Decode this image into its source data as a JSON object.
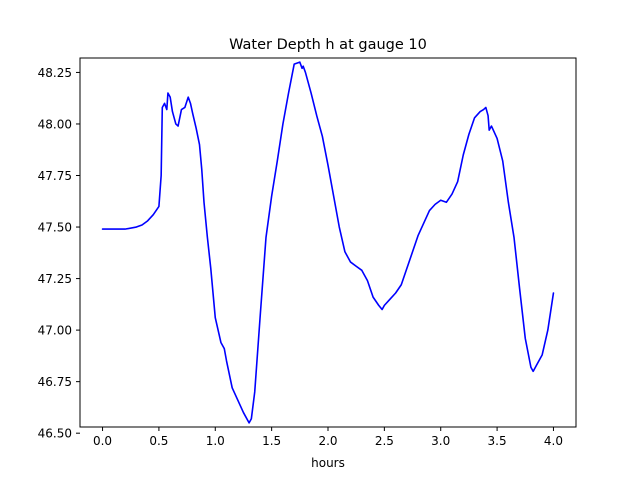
{
  "chart_data": {
    "type": "line",
    "title": "Water Depth h at gauge 10",
    "xlabel": "hours",
    "ylabel": "",
    "xlim": [
      -0.2,
      4.2
    ],
    "ylim": [
      46.53,
      48.32
    ],
    "xticks": [
      0.0,
      0.5,
      1.0,
      1.5,
      2.0,
      2.5,
      3.0,
      3.5,
      4.0
    ],
    "xtick_labels": [
      "0.0",
      "0.5",
      "1.0",
      "1.5",
      "2.0",
      "2.5",
      "3.0",
      "3.5",
      "4.0"
    ],
    "yticks": [
      46.5,
      46.75,
      47.0,
      47.25,
      47.5,
      47.75,
      48.0,
      48.25
    ],
    "ytick_labels": [
      "46.50",
      "46.75",
      "47.00",
      "47.25",
      "47.50",
      "47.75",
      "48.00",
      "48.25"
    ],
    "grid": false,
    "series": [
      {
        "color": "#0000ff",
        "x": [
          0.0,
          0.1,
          0.2,
          0.3,
          0.35,
          0.4,
          0.45,
          0.5,
          0.52,
          0.53,
          0.55,
          0.57,
          0.58,
          0.6,
          0.62,
          0.65,
          0.67,
          0.7,
          0.73,
          0.76,
          0.78,
          0.8,
          0.83,
          0.86,
          0.88,
          0.9,
          0.93,
          0.96,
          1.0,
          1.05,
          1.08,
          1.1,
          1.15,
          1.2,
          1.25,
          1.3,
          1.32,
          1.35,
          1.4,
          1.45,
          1.5,
          1.55,
          1.6,
          1.65,
          1.7,
          1.75,
          1.77,
          1.78,
          1.8,
          1.85,
          1.9,
          1.95,
          2.0,
          2.05,
          2.1,
          2.15,
          2.2,
          2.25,
          2.3,
          2.35,
          2.4,
          2.45,
          2.48,
          2.5,
          2.55,
          2.6,
          2.65,
          2.7,
          2.75,
          2.8,
          2.85,
          2.9,
          2.95,
          3.0,
          3.05,
          3.1,
          3.15,
          3.2,
          3.25,
          3.3,
          3.35,
          3.38,
          3.4,
          3.42,
          3.43,
          3.45,
          3.5,
          3.55,
          3.6,
          3.65,
          3.7,
          3.75,
          3.8,
          3.82,
          3.85,
          3.9,
          3.95,
          4.0
        ],
        "y": [
          47.49,
          47.49,
          47.49,
          47.5,
          47.51,
          47.53,
          47.56,
          47.6,
          47.75,
          48.08,
          48.1,
          48.07,
          48.15,
          48.13,
          48.06,
          48.0,
          47.99,
          48.07,
          48.08,
          48.13,
          48.1,
          48.05,
          47.98,
          47.9,
          47.78,
          47.62,
          47.45,
          47.3,
          47.06,
          46.94,
          46.91,
          46.85,
          46.72,
          46.66,
          46.6,
          46.55,
          46.57,
          46.7,
          47.08,
          47.45,
          47.65,
          47.82,
          48.0,
          48.15,
          48.29,
          48.3,
          48.27,
          48.28,
          48.25,
          48.15,
          48.04,
          47.94,
          47.8,
          47.65,
          47.5,
          47.38,
          47.33,
          47.31,
          47.29,
          47.24,
          47.16,
          47.12,
          47.1,
          47.12,
          47.15,
          47.18,
          47.22,
          47.3,
          47.38,
          47.46,
          47.52,
          47.58,
          47.61,
          47.63,
          47.62,
          47.66,
          47.72,
          47.85,
          47.95,
          48.03,
          48.06,
          48.07,
          48.08,
          48.04,
          47.97,
          47.99,
          47.93,
          47.82,
          47.62,
          47.45,
          47.2,
          46.96,
          46.82,
          46.8,
          46.83,
          46.88,
          47.0,
          47.18
        ]
      }
    ]
  }
}
